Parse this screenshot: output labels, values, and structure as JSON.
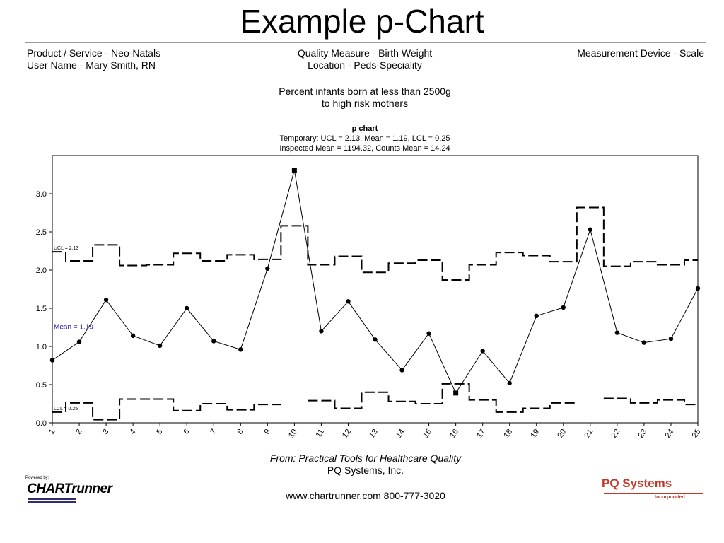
{
  "slide": {
    "title": "Example p-Chart"
  },
  "header": {
    "product": "Product / Service - Neo-Natals",
    "user": "User Name - Mary Smith, RN",
    "measure": "Quality Measure - Birth Weight",
    "location": "Location - Peds-Speciality",
    "device": "Measurement Device - Scale",
    "desc1": "Percent infants born at less than 2500g",
    "desc2": "to high risk mothers",
    "chart_name": "p chart",
    "stats1": "Temporary: UCL = 2.13, Mean = 1.19, LCL = 0.25",
    "stats2": "Inspected Mean = 1194.32, Counts Mean = 14.24"
  },
  "footer": {
    "source": "From: Practical Tools for Healthcare Quality",
    "company": "PQ Systems, Inc.",
    "contact": "www.chartrunner.com 800-777-3020",
    "powered_by": "Powered by:",
    "chartrunner_logo": "CHARTrunner",
    "pq_logo": "PQ Systems",
    "pq_tagline": "Incorporated"
  },
  "colors": {
    "mean_label": "#1a1aa8",
    "pq_logo": "#c0392b"
  },
  "chart_data": {
    "type": "line",
    "title": "p chart",
    "x": [
      1,
      2,
      3,
      4,
      5,
      6,
      7,
      8,
      9,
      10,
      11,
      12,
      13,
      14,
      15,
      16,
      17,
      18,
      19,
      20,
      21,
      22,
      23,
      24,
      25
    ],
    "xtick_labels": [
      "1",
      "2",
      "3",
      "4",
      "5",
      "6",
      "7",
      "8",
      "9",
      "10",
      "11",
      "12",
      "13",
      "14",
      "15",
      "16",
      "17",
      "18",
      "19",
      "20",
      "21",
      "22",
      "23",
      "24",
      "25"
    ],
    "ytick_labels": [
      "0.0",
      "0.5",
      "1.0",
      "1.5",
      "2.0",
      "2.5",
      "3.0"
    ],
    "yticks": [
      0,
      0.5,
      1.0,
      1.5,
      2.0,
      2.5,
      3.0
    ],
    "ylim": [
      0,
      3.5
    ],
    "series": [
      {
        "values": [
          0.82,
          1.06,
          1.61,
          1.14,
          1.01,
          1.5,
          1.07,
          0.96,
          2.02,
          3.31,
          1.2,
          1.59,
          1.09,
          0.69,
          1.17,
          0.39,
          0.94,
          0.52,
          1.4,
          1.51,
          2.53,
          1.18,
          1.05,
          1.1,
          1.76
        ],
        "out_of_control": [
          10,
          16
        ]
      }
    ],
    "mean": 1.19,
    "ucl": [
      2.24,
      2.12,
      2.33,
      2.06,
      2.07,
      2.22,
      2.12,
      2.2,
      2.14,
      2.58,
      2.07,
      2.18,
      1.97,
      2.09,
      2.13,
      1.87,
      2.07,
      2.23,
      2.19,
      2.11,
      2.82,
      2.05,
      2.11,
      2.07,
      2.13
    ],
    "lcl": [
      0.14,
      0.26,
      0.04,
      0.31,
      0.31,
      0.16,
      0.25,
      0.17,
      0.24,
      null,
      0.29,
      0.19,
      0.4,
      0.28,
      0.25,
      0.51,
      0.3,
      0.14,
      0.19,
      0.26,
      null,
      0.32,
      0.26,
      0.3,
      0.24
    ],
    "annotations": {
      "ucl": "UCL = 2.13",
      "mean": "Mean = 1.19",
      "lcl": "LCL = 0.25"
    },
    "grid": false
  }
}
